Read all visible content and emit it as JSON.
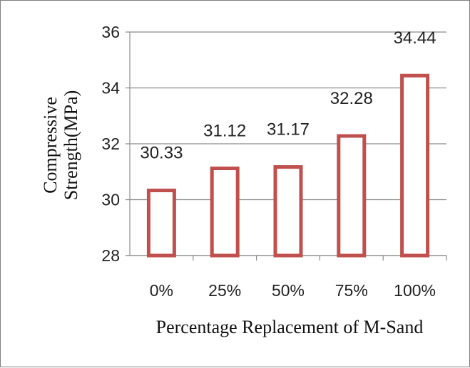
{
  "chart_data": {
    "type": "bar",
    "categories": [
      "0%",
      "25%",
      "50%",
      "75%",
      "100%"
    ],
    "values": [
      30.33,
      31.12,
      31.17,
      32.28,
      34.44
    ],
    "data_labels": [
      "30.33",
      "31.12",
      "31.17",
      "32.28",
      "34.44"
    ],
    "title": "",
    "xlabel": "Percentage Replacement of M-Sand",
    "ylabel": [
      "Compressive",
      "Strength(MPa)"
    ],
    "ylim": [
      28,
      36
    ],
    "yticks": [
      "28",
      "30",
      "32",
      "34",
      "36"
    ],
    "grid": true,
    "legend": "none",
    "bar_outline_color": "#c0504d",
    "bar_fill_color": "#ffffff",
    "grid_color": "#8c8c8c"
  }
}
